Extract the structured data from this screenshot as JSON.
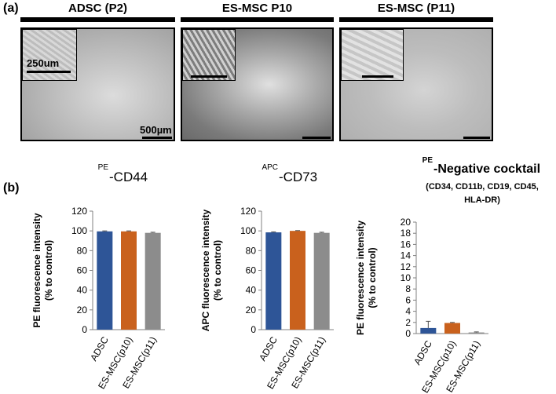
{
  "panel_a_label": "(a)",
  "panel_b_label": "(b)",
  "images": [
    {
      "title": "ADSC  (P2)",
      "inset_scale_label": "250um",
      "main_scale_label": "500µm"
    },
    {
      "title": "ES-MSC P10"
    },
    {
      "title": "ES-MSC (P11)"
    }
  ],
  "chart_titles": [
    {
      "sup": "PE",
      "main": "-CD44"
    },
    {
      "sup": "APC",
      "main": "-CD73"
    },
    {
      "sup": "PE",
      "main": "-Negative cocktail",
      "sub1": "(CD34, CD11b, CD19, CD45,",
      "sub2": "HLA-DR)"
    }
  ],
  "colors": {
    "ADSC": "#2e5597",
    "ES-MSC(p10)": "#c9611d",
    "ES-MSC(p11)": "#8c8c8c"
  },
  "chart_data": [
    {
      "type": "bar",
      "categories": [
        "ADSC",
        "ES-MSC(p10)",
        "ES-MSC(p11)"
      ],
      "values": [
        99.5,
        99.5,
        98
      ],
      "errors": [
        0.5,
        0.5,
        0.6
      ],
      "ylabel_line1": "PE fluorescence intensity",
      "ylabel_line2": "(% to control)",
      "ylim": [
        0,
        120
      ],
      "yticks": [
        0,
        20,
        40,
        60,
        80,
        100,
        120
      ]
    },
    {
      "type": "bar",
      "categories": [
        "ADSC",
        "ES-MSC(p10)",
        "ES-MSC(p11)"
      ],
      "values": [
        98.5,
        100,
        98
      ],
      "errors": [
        0.5,
        0.3,
        0.6
      ],
      "ylabel_line1": "APC fluorescence intensity",
      "ylabel_line2": "(% to control)",
      "ylim": [
        0,
        120
      ],
      "yticks": [
        0,
        20,
        40,
        60,
        80,
        100,
        120
      ]
    },
    {
      "type": "bar",
      "categories": [
        "ADSC",
        "ES-MSC(p10)",
        "ES-MSC(p11)"
      ],
      "values": [
        1.0,
        1.9,
        0.2
      ],
      "errors": [
        1.2,
        0.1,
        0.1
      ],
      "ylabel_line1": "PE fluorescence intensity",
      "ylabel_line2": "(% to control)",
      "ylim": [
        0,
        20
      ],
      "yticks": [
        0,
        2,
        4,
        6,
        8,
        10,
        12,
        14,
        16,
        18,
        20
      ]
    }
  ]
}
